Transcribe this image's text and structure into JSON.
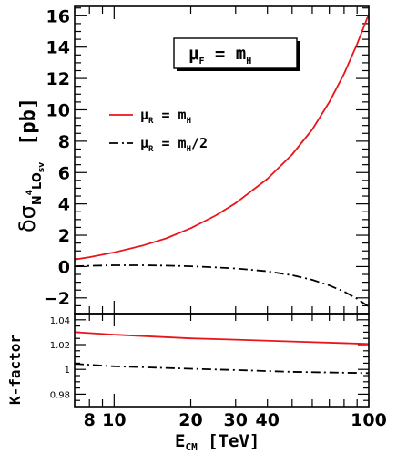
{
  "chart_data": [
    {
      "type": "line",
      "panel": "main",
      "xscale": "log",
      "xlim": [
        7,
        100
      ],
      "ylim": [
        -3,
        16.6
      ],
      "ylabel": {
        "prefix": "δσ",
        "sub_main": "N",
        "sup": "4",
        "sub_rest": "LO",
        "sub_sub": "sv",
        "unit": "[pb]"
      },
      "yticks": [
        -2,
        0,
        2,
        4,
        6,
        8,
        10,
        12,
        14,
        16
      ],
      "box_label": {
        "mu": "μ",
        "sub": "F",
        "rest": " = m",
        "sub2": "H"
      },
      "legend_position": "top-left",
      "series": [
        {
          "name_parts": {
            "mu": "μ",
            "sub": "R",
            "rest": " = m",
            "sub2": "H",
            "tail": ""
          },
          "color": "#e8161c",
          "dash": "solid",
          "x": [
            7,
            8,
            10,
            13,
            16,
            20,
            25,
            30,
            40,
            50,
            60,
            70,
            80,
            90,
            100
          ],
          "y": [
            0.45,
            0.6,
            0.9,
            1.35,
            1.8,
            2.45,
            3.25,
            4.05,
            5.6,
            7.15,
            8.75,
            10.5,
            12.3,
            14.2,
            16.1
          ]
        },
        {
          "name_parts": {
            "mu": "μ",
            "sub": "R",
            "rest": " = m",
            "sub2": "H",
            "tail": "/2"
          },
          "color": "#000000",
          "dash": "dashdot",
          "x": [
            7,
            8,
            10,
            13,
            16,
            20,
            25,
            30,
            40,
            50,
            60,
            70,
            80,
            90,
            100
          ],
          "y": [
            0.02,
            0.05,
            0.08,
            0.08,
            0.06,
            0.02,
            -0.05,
            -0.12,
            -0.3,
            -0.55,
            -0.85,
            -1.2,
            -1.6,
            -2.05,
            -2.55
          ]
        }
      ]
    },
    {
      "type": "line",
      "panel": "ratio",
      "xscale": "log",
      "xlim": [
        7,
        100
      ],
      "ylim": [
        0.97,
        1.045
      ],
      "ylabel": "K-factor",
      "yticks": [
        0.98,
        1,
        1.02,
        1.04
      ],
      "xlabel": {
        "main": "E",
        "sub": "CM",
        "rest": " [TeV]"
      },
      "xticks": [
        8,
        10,
        20,
        30,
        40,
        100
      ],
      "series": [
        {
          "color": "#e8161c",
          "dash": "solid",
          "x": [
            7,
            10,
            20,
            30,
            50,
            100
          ],
          "y": [
            1.03,
            1.028,
            1.025,
            1.024,
            1.0225,
            1.0205
          ]
        },
        {
          "color": "#000000",
          "dash": "dashdot",
          "x": [
            7,
            10,
            20,
            30,
            50,
            100
          ],
          "y": [
            1.0045,
            1.0025,
            1.0005,
            0.9995,
            0.998,
            0.997
          ]
        }
      ]
    }
  ]
}
